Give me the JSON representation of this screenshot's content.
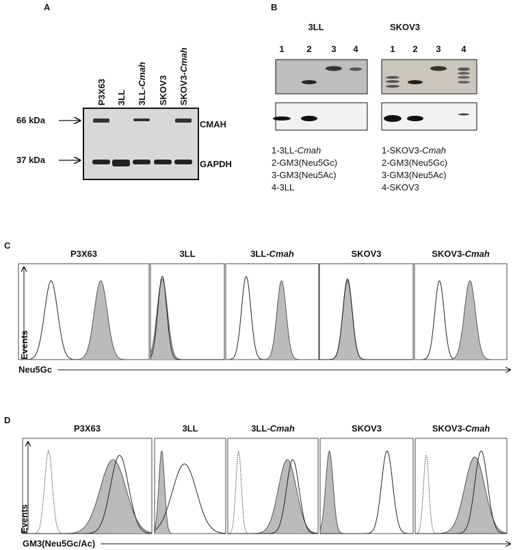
{
  "panel_a": {
    "label": "A",
    "lanes": [
      [
        "P3X63"
      ],
      [
        "3LL"
      ],
      [
        "3LL-",
        "Cmah"
      ],
      [
        "SKOV3"
      ],
      [
        "SKOV3-",
        "Cmah"
      ]
    ],
    "markers": [
      "66 kDa",
      "37 kDa"
    ],
    "bands": [
      "CMAH",
      "GAPDH"
    ]
  },
  "panel_b": {
    "label": "B",
    "blots": [
      {
        "title": "3LL",
        "lanes": [
          "1",
          "2",
          "3",
          "4"
        ],
        "legend": [
          [
            "1-3LL-",
            "Cmah"
          ],
          [
            "2-GM3(Neu5Gc)"
          ],
          [
            "3-GM3(Neu5Ac)"
          ],
          [
            "4-3LL"
          ]
        ]
      },
      {
        "title": "SKOV3",
        "lanes": [
          "1",
          "2",
          "3",
          "4"
        ],
        "legend": [
          [
            "1-SKOV3-",
            "Cmah"
          ],
          [
            "2-GM3(Neu5Gc)"
          ],
          [
            "3-GM3(Neu5Ac)"
          ],
          [
            "4-SKOV3"
          ]
        ]
      }
    ]
  },
  "panel_c": {
    "label": "C",
    "samples": [
      [
        "P3X63"
      ],
      [
        "3LL"
      ],
      [
        "3LL-",
        "Cmah"
      ],
      [
        "SKOV3"
      ],
      [
        "SKOV3-",
        "Cmah"
      ]
    ],
    "y_label": "Events",
    "x_label": "Neu5Gc"
  },
  "panel_d": {
    "label": "D",
    "samples": [
      [
        "P3X63"
      ],
      [
        "3LL"
      ],
      [
        "3LL-",
        "Cmah"
      ],
      [
        "SKOV3"
      ],
      [
        "SKOV3-",
        "Cmah"
      ]
    ],
    "y_label": "Events",
    "x_label": "GM3(Neu5Gc/Ac)"
  }
}
